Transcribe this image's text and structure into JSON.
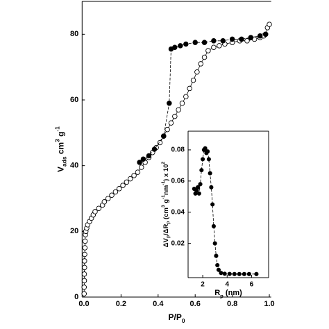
{
  "chart_data": [
    {
      "type": "scatter",
      "xlabel": [
        {
          "text": "P/P"
        },
        {
          "text": "0",
          "style": "sub"
        }
      ],
      "ylabel": [
        {
          "text": "V"
        },
        {
          "text": "ads",
          "style": "sub"
        },
        {
          "text": " cm"
        },
        {
          "text": "3",
          "style": "sup"
        },
        {
          "text": " g"
        },
        {
          "text": "-1",
          "style": "sup"
        }
      ],
      "xlim": [
        -0.01,
        1.01
      ],
      "ylim": [
        0,
        90
      ],
      "xticks": [
        {
          "value": 0,
          "label": "0.0"
        },
        0.2,
        0.4,
        0.6,
        0.8,
        {
          "value": 1,
          "label": "1.0"
        }
      ],
      "yticks": [
        0,
        20,
        40,
        60,
        80
      ],
      "series": [
        {
          "marker": "open",
          "line": "solid",
          "color": "#000000",
          "x": [
            0.001,
            0.001,
            0.002,
            0.002,
            0.003,
            0.003,
            0.004,
            0.005,
            0.006,
            0.008,
            0.01,
            0.015,
            0.02,
            0.03,
            0.04,
            0.05,
            0.06,
            0.08,
            0.1,
            0.11,
            0.13,
            0.15,
            0.17,
            0.19,
            0.21,
            0.23,
            0.25,
            0.27,
            0.29,
            0.31,
            0.33,
            0.35,
            0.37,
            0.39,
            0.41,
            0.43,
            0.45,
            0.47,
            0.49,
            0.51,
            0.53,
            0.55,
            0.57,
            0.59,
            0.61,
            0.63,
            0.65,
            0.67,
            0.7,
            0.73,
            0.76,
            0.8,
            0.84,
            0.88,
            0.92,
            0.95,
            0.97,
            0.98,
            0.99,
            1.0
          ],
          "values": [
            1,
            3,
            5,
            7,
            9,
            11,
            13,
            15,
            17,
            19,
            20,
            21,
            22,
            23,
            24,
            25,
            26,
            27,
            28,
            29,
            30,
            31,
            32,
            33,
            34,
            35,
            36,
            37,
            38,
            39.5,
            41,
            42.5,
            44,
            45.5,
            47,
            49,
            51,
            53,
            55,
            57,
            59,
            61,
            63.5,
            66,
            68.5,
            71,
            73,
            75,
            76,
            76.5,
            77,
            77.5,
            78,
            78,
            78.5,
            79,
            79.5,
            80,
            82,
            83
          ]
        },
        {
          "marker": "filled",
          "line": "dashed",
          "color": "#000000",
          "x": [
            0.98,
            0.95,
            0.9,
            0.85,
            0.8,
            0.75,
            0.7,
            0.65,
            0.6,
            0.55,
            0.52,
            0.49,
            0.47,
            0.46,
            0.43,
            0.38,
            0.35,
            0.32,
            0.3
          ],
          "values": [
            80,
            79.5,
            79,
            78.5,
            78.5,
            78,
            78,
            77.5,
            77.5,
            77,
            76.5,
            76,
            75.5,
            59,
            49,
            45,
            43,
            42,
            41
          ]
        }
      ]
    },
    {
      "type": "scatter",
      "xlabel": [
        {
          "text": "R"
        },
        {
          "text": "p",
          "style": "sub"
        },
        {
          "text": " (nm)"
        }
      ],
      "ylabel": [
        {
          "text": "ΔV"
        },
        {
          "text": "p",
          "style": "sub"
        },
        {
          "text": "/ΔR"
        },
        {
          "text": "p",
          "style": "sub"
        },
        {
          "text": " (cm"
        },
        {
          "text": "3",
          "style": "sup"
        },
        {
          "text": " g"
        },
        {
          "text": "-1",
          "style": "sup"
        },
        {
          "text": "nm"
        },
        {
          "text": "-1",
          "style": "sup"
        },
        {
          "text": ") x 10"
        },
        {
          "text": "2",
          "style": "sup"
        }
      ],
      "xlim": [
        0.8,
        7.4
      ],
      "ylim": [
        -0.002,
        0.092
      ],
      "xticks": [
        2,
        4,
        6
      ],
      "yticks": [
        0.02,
        0.04,
        0.06,
        0.08
      ],
      "series": [
        {
          "marker": "filled",
          "line": "dashed",
          "color": "#000000",
          "x": [
            1.3,
            1.4,
            1.5,
            1.6,
            1.7,
            1.8,
            1.9,
            2.0,
            2.1,
            2.2,
            2.3,
            2.4,
            2.5,
            2.6,
            2.7,
            2.8,
            2.9,
            3.0,
            3.1,
            3.2,
            3.3,
            3.5,
            3.8,
            4.2,
            4.6,
            5.0,
            5.4,
            5.8,
            6.4
          ],
          "values": [
            0.055,
            0.052,
            0.054,
            0.056,
            0.052,
            0.058,
            0.067,
            0.074,
            0.08,
            0.081,
            0.078,
            0.079,
            0.074,
            0.065,
            0.056,
            0.045,
            0.031,
            0.02,
            0.012,
            0.006,
            0.003,
            0.001,
            0.0005,
            0.0004,
            0.0003,
            0.0003,
            0.0003,
            0.0003,
            0.0003
          ]
        }
      ]
    }
  ]
}
